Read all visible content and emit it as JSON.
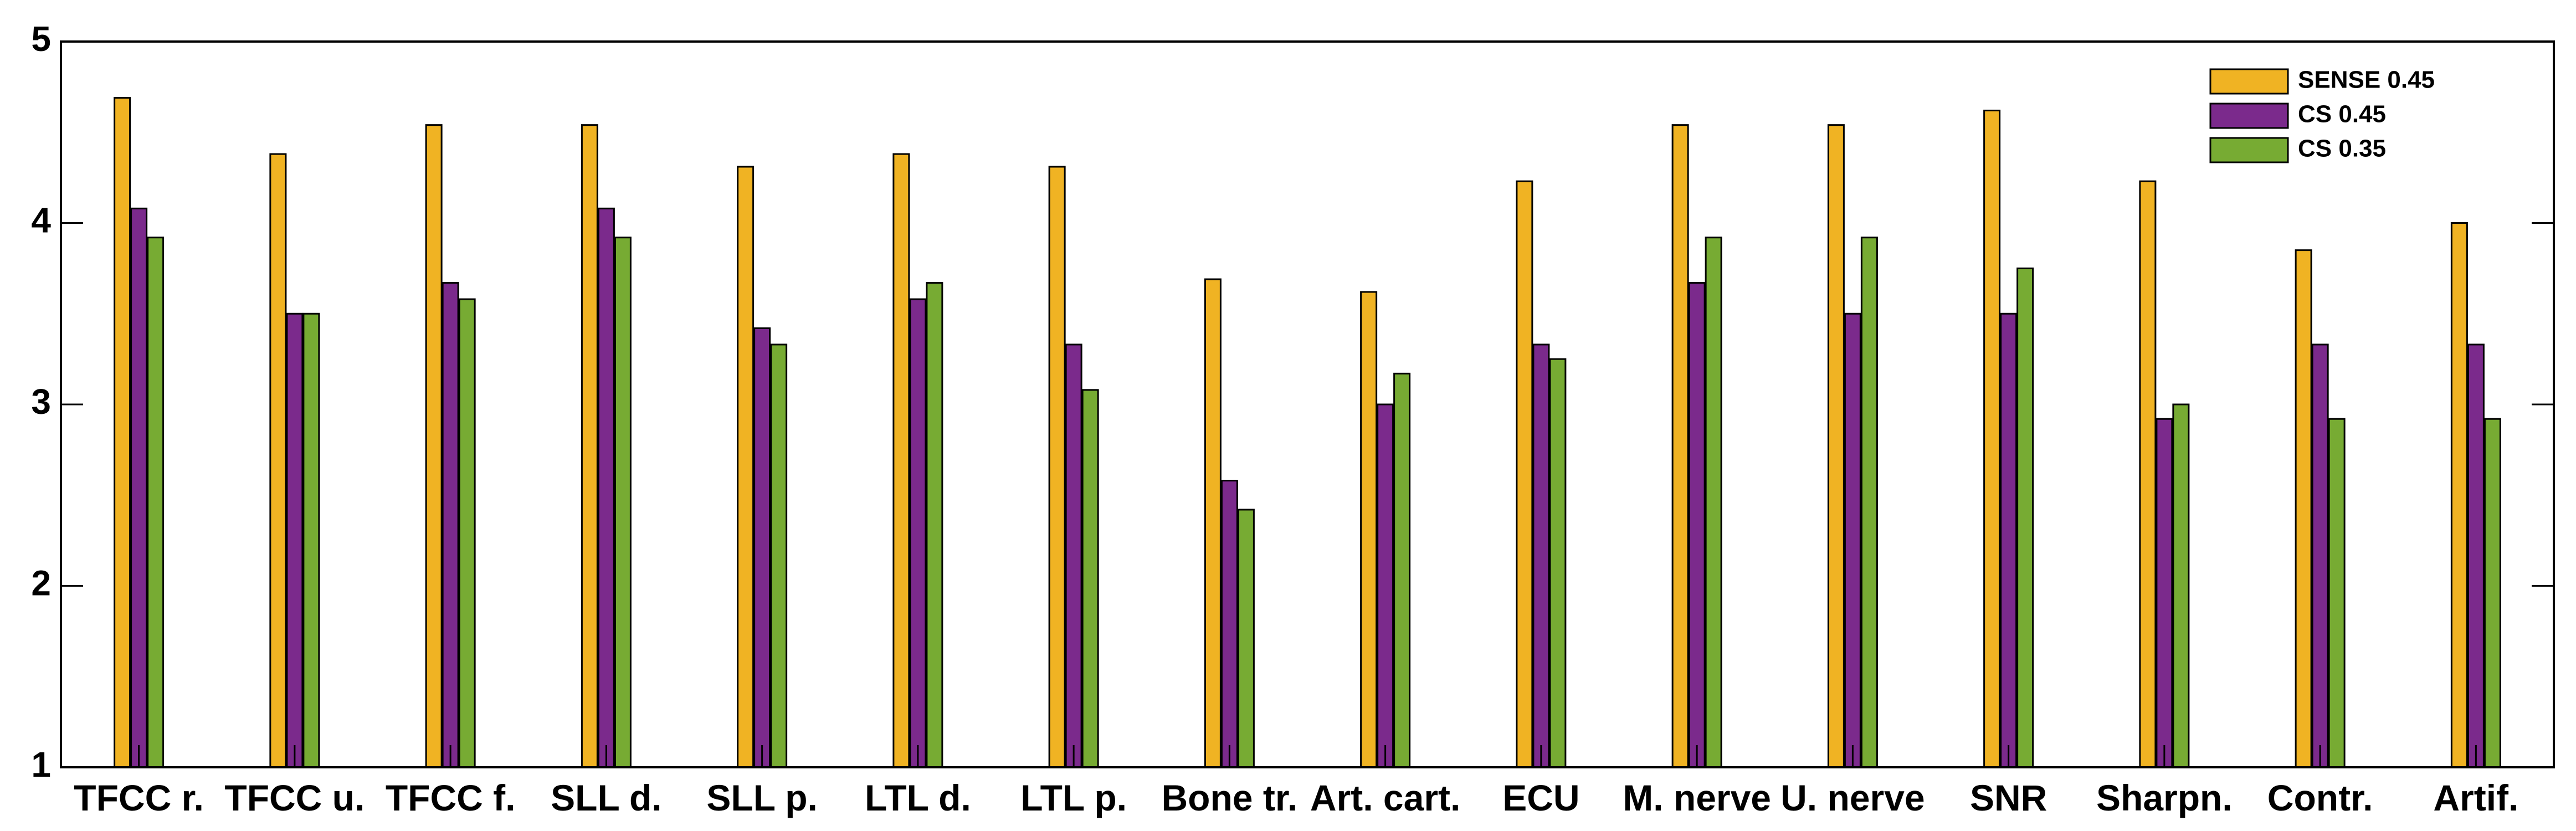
{
  "chart_data": {
    "type": "bar",
    "categories": [
      "TFCC r.",
      "TFCC u.",
      "TFCC f.",
      "SLL d.",
      "SLL p.",
      "LTL d.",
      "LTL p.",
      "Bone tr.",
      "Art. cart.",
      "ECU",
      "M. nerve",
      "U. nerve",
      "SNR",
      "Sharpn.",
      "Contr.",
      "Artif."
    ],
    "series": [
      {
        "name": "SENSE 0.45",
        "color": "#F0B323",
        "values": [
          4.69,
          4.38,
          4.54,
          4.54,
          4.31,
          4.38,
          4.31,
          3.69,
          3.62,
          4.23,
          4.54,
          4.54,
          4.62,
          4.23,
          3.85,
          4.0
        ]
      },
      {
        "name": "CS 0.45",
        "color": "#7B2A8C",
        "values": [
          4.08,
          3.5,
          3.67,
          4.08,
          3.42,
          3.58,
          3.33,
          2.58,
          3.0,
          3.33,
          3.67,
          3.5,
          3.5,
          2.92,
          3.33,
          3.33
        ]
      },
      {
        "name": "CS 0.35",
        "color": "#77AB33",
        "values": [
          3.92,
          3.5,
          3.58,
          3.92,
          3.33,
          3.67,
          3.08,
          2.42,
          3.17,
          3.25,
          3.92,
          3.92,
          3.75,
          3.0,
          2.92,
          2.92
        ]
      }
    ],
    "ylim": [
      1,
      5
    ],
    "yticks": [
      "1",
      "2",
      "3",
      "4",
      "5"
    ],
    "legend_position": "top-right",
    "grid": false
  }
}
